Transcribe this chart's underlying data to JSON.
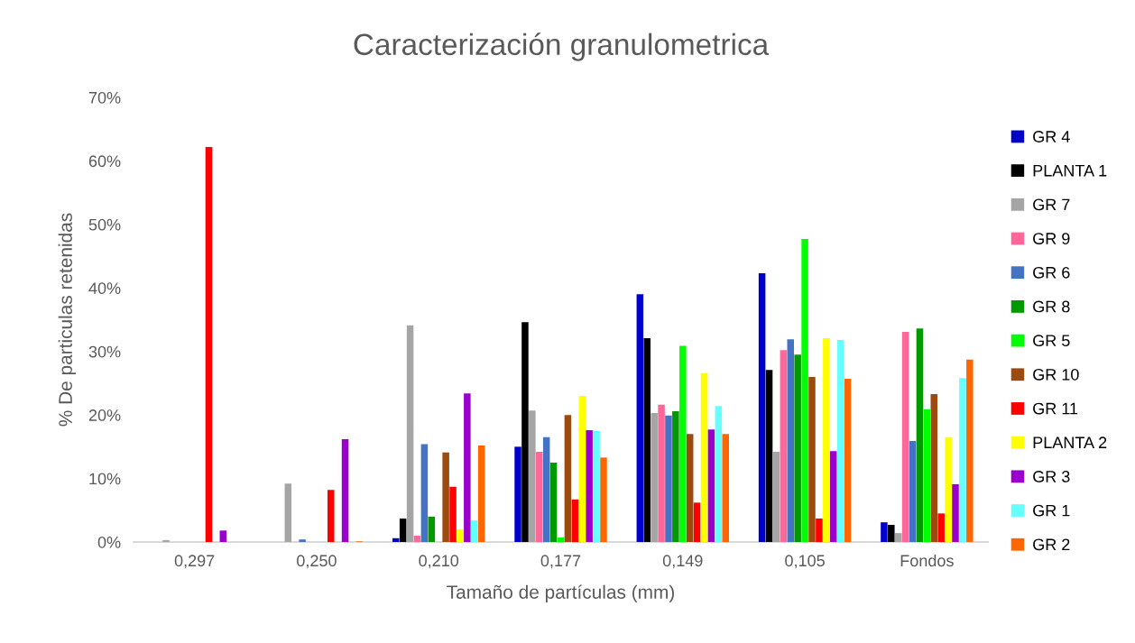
{
  "chart_data": {
    "type": "bar",
    "title": "Caracterización granulometrica",
    "xlabel": "Tamaño de partículas (mm)",
    "ylabel": "% De particulas retenidas",
    "categories": [
      "0,297",
      "0,250",
      "0,210",
      "0,177",
      "0,149",
      "0,105",
      "Fondos"
    ],
    "series": [
      {
        "name": "GR 4",
        "color": "#0000cc",
        "values": [
          0,
          0,
          0.6,
          15.0,
          39.0,
          42.3,
          3.1
        ]
      },
      {
        "name": "PLANTA 1",
        "color": "#000000",
        "values": [
          0,
          0,
          3.7,
          34.6,
          32.1,
          27.1,
          2.7
        ]
      },
      {
        "name": "GR 7",
        "color": "#a5a5a5",
        "values": [
          0.3,
          9.2,
          34.1,
          20.7,
          20.3,
          14.2,
          1.4
        ]
      },
      {
        "name": "GR 9",
        "color": "#ff6699",
        "values": [
          0,
          0,
          1.0,
          14.2,
          21.6,
          30.2,
          33.1
        ]
      },
      {
        "name": "GR 6",
        "color": "#4472c4",
        "values": [
          0,
          0.4,
          15.4,
          16.5,
          19.9,
          31.9,
          15.9
        ]
      },
      {
        "name": "GR 8",
        "color": "#009900",
        "values": [
          0,
          0,
          4.0,
          12.5,
          20.6,
          29.5,
          33.6
        ]
      },
      {
        "name": "GR 5",
        "color": "#00ff00",
        "values": [
          0,
          0,
          0,
          0.7,
          30.9,
          47.7,
          20.9
        ]
      },
      {
        "name": "GR 10",
        "color": "#9c4a0e",
        "values": [
          0,
          0,
          14.1,
          20.0,
          17.0,
          26.0,
          23.3
        ]
      },
      {
        "name": "GR 11",
        "color": "#ff0000",
        "values": [
          62.2,
          8.2,
          8.7,
          6.7,
          6.2,
          3.7,
          4.5
        ]
      },
      {
        "name": "PLANTA 2",
        "color": "#ffff00",
        "values": [
          0,
          0,
          2.0,
          23.0,
          26.6,
          32.1,
          16.5
        ]
      },
      {
        "name": "GR 3",
        "color": "#9900cc",
        "values": [
          1.8,
          16.2,
          23.4,
          17.6,
          17.7,
          14.3,
          9.1
        ]
      },
      {
        "name": "GR 1",
        "color": "#66ffff",
        "values": [
          0,
          0,
          3.4,
          17.5,
          21.4,
          31.8,
          25.8
        ]
      },
      {
        "name": "GR 2",
        "color": "#ff6600",
        "values": [
          0,
          0.1,
          15.2,
          13.3,
          17.0,
          25.7,
          28.7
        ]
      }
    ],
    "ylim": [
      0,
      70
    ],
    "yticks": [
      {
        "value": 0,
        "label": "0%"
      },
      {
        "value": 10,
        "label": "10%"
      },
      {
        "value": 20,
        "label": "20%"
      },
      {
        "value": 30,
        "label": "30%"
      },
      {
        "value": 40,
        "label": "40%"
      },
      {
        "value": 50,
        "label": "50%"
      },
      {
        "value": 60,
        "label": "60%"
      },
      {
        "value": 70,
        "label": "70%"
      }
    ],
    "legend": "right"
  }
}
